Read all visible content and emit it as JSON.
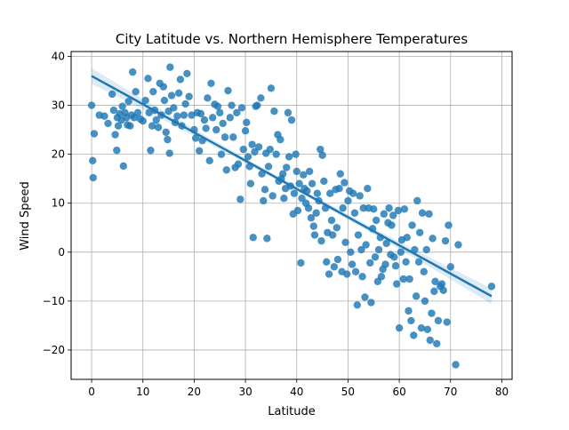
{
  "chart_data": {
    "type": "scatter",
    "title": "City Latitude vs. Northern Hemisphere Temperatures",
    "xlabel": "Latitude",
    "ylabel": "Wind Speed",
    "xlim": [
      -4,
      82
    ],
    "ylim": [
      -26,
      41
    ],
    "xticks": [
      0,
      10,
      20,
      30,
      40,
      50,
      60,
      70,
      80
    ],
    "yticks": [
      -20,
      -10,
      0,
      10,
      20,
      30,
      40
    ],
    "grid": true,
    "point_color": "#1f77b4",
    "regression": {
      "slope": -0.577,
      "intercept": 36.0,
      "x_range": [
        0,
        78
      ],
      "ci_halfwidth_ends": 1.6,
      "ci_halfwidth_mid": 0.45
    },
    "series": [
      {
        "points": [
          [
            0,
            30
          ],
          [
            0.2,
            18.7
          ],
          [
            0.3,
            15.2
          ],
          [
            0.5,
            24.2
          ],
          [
            1.5,
            28
          ],
          [
            2.5,
            27.8
          ],
          [
            3.2,
            26.3
          ],
          [
            4,
            32.3
          ],
          [
            4.3,
            29
          ],
          [
            4.6,
            24
          ],
          [
            4.9,
            20.8
          ],
          [
            5,
            27.5
          ],
          [
            5.2,
            25.8
          ],
          [
            5.5,
            28.3
          ],
          [
            5.8,
            27
          ],
          [
            6,
            29.8
          ],
          [
            6.2,
            17.6
          ],
          [
            6.5,
            28.5
          ],
          [
            6.8,
            27.5
          ],
          [
            7,
            26
          ],
          [
            7.2,
            30.8
          ],
          [
            7.5,
            25.8
          ],
          [
            7.8,
            28
          ],
          [
            8,
            36.8
          ],
          [
            8.3,
            27.5
          ],
          [
            8.6,
            32.8
          ],
          [
            9,
            28.5
          ],
          [
            9.5,
            27.2
          ],
          [
            10,
            26.8
          ],
          [
            10.5,
            31
          ],
          [
            11,
            35.5
          ],
          [
            11.2,
            28.5
          ],
          [
            11.5,
            20.8
          ],
          [
            11.8,
            25.8
          ],
          [
            12,
            32.8
          ],
          [
            12.3,
            29
          ],
          [
            12.6,
            27
          ],
          [
            13,
            25.5
          ],
          [
            13.3,
            34.5
          ],
          [
            13.6,
            28
          ],
          [
            14,
            33.8
          ],
          [
            14.2,
            31
          ],
          [
            14.5,
            24.5
          ],
          [
            14.8,
            23
          ],
          [
            15,
            28.8
          ],
          [
            15.2,
            20.2
          ],
          [
            15.3,
            37.8
          ],
          [
            15.6,
            32
          ],
          [
            16,
            29.5
          ],
          [
            16.3,
            26.5
          ],
          [
            16.7,
            27.8
          ],
          [
            17,
            32.5
          ],
          [
            17.3,
            35.3
          ],
          [
            17.6,
            25.8
          ],
          [
            18,
            28
          ],
          [
            18.3,
            30.3
          ],
          [
            18.6,
            36.5
          ],
          [
            19,
            31.8
          ],
          [
            19.5,
            28
          ],
          [
            20,
            25
          ],
          [
            20.3,
            23.3
          ],
          [
            20.6,
            28.5
          ],
          [
            21,
            20.7
          ],
          [
            21.3,
            28.3
          ],
          [
            21.6,
            22.8
          ],
          [
            22,
            27
          ],
          [
            22.3,
            25.3
          ],
          [
            22.6,
            31.5
          ],
          [
            23,
            18.7
          ],
          [
            23.3,
            34.5
          ],
          [
            23.6,
            27.5
          ],
          [
            24,
            30.2
          ],
          [
            24.3,
            25
          ],
          [
            24.6,
            29.8
          ],
          [
            25,
            28.5
          ],
          [
            25.3,
            20
          ],
          [
            25.6,
            26.3
          ],
          [
            26,
            23.5
          ],
          [
            26.3,
            16.8
          ],
          [
            26.6,
            33
          ],
          [
            27,
            27.5
          ],
          [
            27.3,
            30
          ],
          [
            27.6,
            23.5
          ],
          [
            28,
            17.3
          ],
          [
            28.3,
            28.5
          ],
          [
            28.6,
            18
          ],
          [
            29,
            10.8
          ],
          [
            29.3,
            29.5
          ],
          [
            29.6,
            21
          ],
          [
            30,
            24.8
          ],
          [
            30.2,
            26.5
          ],
          [
            30.5,
            19.5
          ],
          [
            30.8,
            17.5
          ],
          [
            31,
            14
          ],
          [
            31.3,
            22
          ],
          [
            31.5,
            3
          ],
          [
            31.8,
            20.5
          ],
          [
            32,
            29.8
          ],
          [
            32.3,
            30
          ],
          [
            32.6,
            21.5
          ],
          [
            33,
            31.5
          ],
          [
            33.2,
            16
          ],
          [
            33.5,
            10.5
          ],
          [
            33.8,
            12.8
          ],
          [
            34,
            20.2
          ],
          [
            34.2,
            2.8
          ],
          [
            34.5,
            17.5
          ],
          [
            34.8,
            21
          ],
          [
            35,
            33.5
          ],
          [
            35.3,
            11.5
          ],
          [
            35.6,
            28.8
          ],
          [
            36,
            20
          ],
          [
            36.3,
            24
          ],
          [
            36.5,
            14.5
          ],
          [
            36.8,
            23
          ],
          [
            37,
            15
          ],
          [
            37.3,
            16
          ],
          [
            37.5,
            11
          ],
          [
            37.8,
            13
          ],
          [
            38,
            17.3
          ],
          [
            38.3,
            28.5
          ],
          [
            38.5,
            19.5
          ],
          [
            38.8,
            13.5
          ],
          [
            39,
            27
          ],
          [
            39.3,
            7.8
          ],
          [
            39.5,
            12
          ],
          [
            39.8,
            20
          ],
          [
            40,
            16.5
          ],
          [
            40.2,
            8.5
          ],
          [
            40.5,
            14
          ],
          [
            40.8,
            -2.2
          ],
          [
            41,
            11
          ],
          [
            41.3,
            15.8
          ],
          [
            41.5,
            13
          ],
          [
            41.8,
            10
          ],
          [
            42,
            12.5
          ],
          [
            42.3,
            9
          ],
          [
            42.5,
            16.5
          ],
          [
            42.8,
            7
          ],
          [
            43,
            14
          ],
          [
            43.3,
            5.3
          ],
          [
            43.5,
            3.5
          ],
          [
            43.8,
            8
          ],
          [
            44,
            12
          ],
          [
            44.3,
            10.5
          ],
          [
            44.6,
            21
          ],
          [
            44.8,
            2.3
          ],
          [
            45,
            19.8
          ],
          [
            45.3,
            14.5
          ],
          [
            45.6,
            9
          ],
          [
            45.8,
            -2
          ],
          [
            46,
            4
          ],
          [
            46.3,
            -4.5
          ],
          [
            46.5,
            12
          ],
          [
            46.8,
            6.5
          ],
          [
            47,
            3.5
          ],
          [
            47.3,
            -3
          ],
          [
            47.6,
            12.8
          ],
          [
            47.8,
            5
          ],
          [
            48,
            -1.5
          ],
          [
            48.3,
            13
          ],
          [
            48.5,
            16
          ],
          [
            48.8,
            -4
          ],
          [
            49,
            9
          ],
          [
            49.3,
            14.2
          ],
          [
            49.5,
            2
          ],
          [
            49.8,
            -4.5
          ],
          [
            50,
            10.5
          ],
          [
            50.3,
            12.5
          ],
          [
            50.5,
            0
          ],
          [
            50.8,
            -2.5
          ],
          [
            51,
            12
          ],
          [
            51.3,
            8
          ],
          [
            51.5,
            -4
          ],
          [
            51.8,
            -10.8
          ],
          [
            52,
            3.5
          ],
          [
            52.3,
            11.5
          ],
          [
            52.6,
            0.5
          ],
          [
            52.8,
            -5
          ],
          [
            53,
            9
          ],
          [
            53.3,
            -9.2
          ],
          [
            53.5,
            1.5
          ],
          [
            53.8,
            13
          ],
          [
            54,
            9
          ],
          [
            54.3,
            -2.2
          ],
          [
            54.5,
            -10.3
          ],
          [
            54.8,
            4.8
          ],
          [
            55,
            8.8
          ],
          [
            55.3,
            -1
          ],
          [
            55.5,
            6.5
          ],
          [
            55.8,
            -6
          ],
          [
            56,
            0.5
          ],
          [
            56.3,
            3
          ],
          [
            56.5,
            -5
          ],
          [
            56.8,
            -3.5
          ],
          [
            57,
            7.8
          ],
          [
            57.3,
            -2.5
          ],
          [
            57.5,
            1.8
          ],
          [
            57.8,
            6
          ],
          [
            58,
            9
          ],
          [
            58.3,
            -0.5
          ],
          [
            58.5,
            5.5
          ],
          [
            58.8,
            7.5
          ],
          [
            59,
            -1
          ],
          [
            59.3,
            -2.8
          ],
          [
            59.5,
            -6.5
          ],
          [
            59.8,
            8.5
          ],
          [
            60,
            -15.5
          ],
          [
            60.3,
            0
          ],
          [
            60.5,
            2.5
          ],
          [
            60.8,
            -5.5
          ],
          [
            61,
            8.8
          ],
          [
            61.3,
            -2
          ],
          [
            61.5,
            3
          ],
          [
            61.8,
            -12
          ],
          [
            62,
            -5.5
          ],
          [
            62.3,
            -14
          ],
          [
            62.5,
            5.5
          ],
          [
            62.8,
            -17
          ],
          [
            63,
            0.5
          ],
          [
            63.3,
            -9
          ],
          [
            63.5,
            10.5
          ],
          [
            63.8,
            -2
          ],
          [
            64,
            4
          ],
          [
            64.3,
            -15.5
          ],
          [
            64.5,
            8
          ],
          [
            64.8,
            -4
          ],
          [
            65,
            -10
          ],
          [
            65.3,
            0.5
          ],
          [
            65.5,
            -15.8
          ],
          [
            65.8,
            7.8
          ],
          [
            66,
            -18
          ],
          [
            66.3,
            -12.5
          ],
          [
            66.5,
            2.8
          ],
          [
            66.8,
            -8
          ],
          [
            67,
            -6
          ],
          [
            67.3,
            -18.7
          ],
          [
            67.6,
            -14
          ],
          [
            68,
            -7
          ],
          [
            68.3,
            -6.5
          ],
          [
            68.6,
            -7.8
          ],
          [
            69,
            2.3
          ],
          [
            69.3,
            -14.3
          ],
          [
            69.6,
            5.5
          ],
          [
            70,
            -3
          ],
          [
            71,
            -23
          ],
          [
            71.5,
            1.5
          ],
          [
            78,
            -7
          ]
        ]
      }
    ]
  }
}
